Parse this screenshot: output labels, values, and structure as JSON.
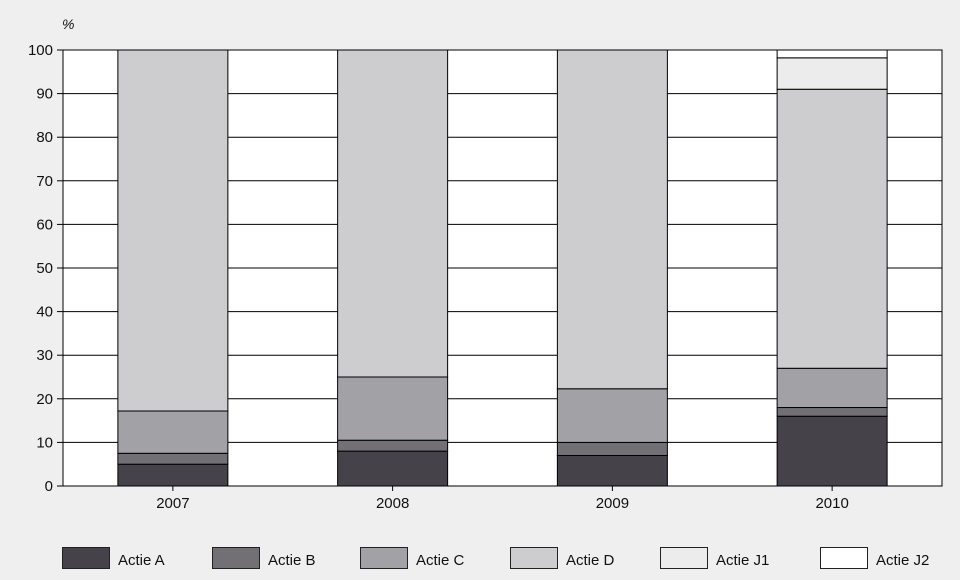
{
  "chart_data": {
    "type": "bar",
    "stacked": true,
    "title": "",
    "xlabel": "",
    "ylabel": "%",
    "ylim": [
      0,
      100
    ],
    "yticks": [
      0,
      10,
      20,
      30,
      40,
      50,
      60,
      70,
      80,
      90,
      100
    ],
    "categories": [
      "2007",
      "2008",
      "2009",
      "2010"
    ],
    "grid": true,
    "legend_position": "bottom",
    "series": [
      {
        "name": "Actie A",
        "color": "#45424a",
        "values": [
          5,
          8,
          7,
          16
        ]
      },
      {
        "name": "Actie B",
        "color": "#737075",
        "values": [
          2.5,
          2.5,
          3,
          2
        ]
      },
      {
        "name": "Actie C",
        "color": "#a2a1a6",
        "values": [
          9.7,
          14.5,
          12.3,
          9
        ]
      },
      {
        "name": "Actie D",
        "color": "#cdcdcf",
        "values": [
          82.8,
          75,
          77.7,
          64
        ]
      },
      {
        "name": "Actie J1",
        "color": "#ececec",
        "values": [
          0,
          0,
          0,
          7.2
        ]
      },
      {
        "name": "Actie J2",
        "color": "#ffffff",
        "values": [
          0,
          0,
          0,
          1.8
        ]
      }
    ]
  }
}
